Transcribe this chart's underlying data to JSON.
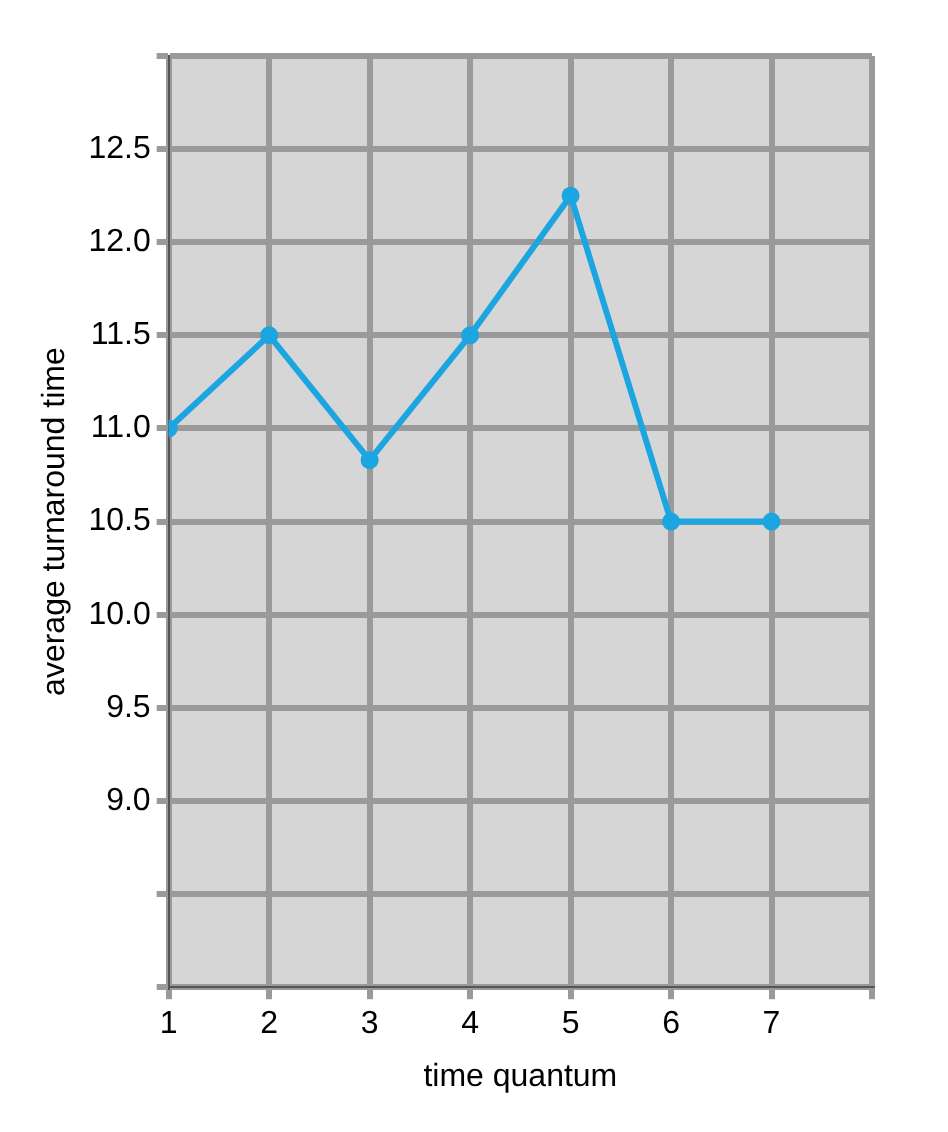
{
  "chart_data": {
    "type": "line",
    "xlabel": "time quantum",
    "ylabel": "average turnaround time",
    "x": [
      1,
      2,
      3,
      4,
      5,
      6,
      7
    ],
    "series": [
      {
        "color": "#1ba5e1",
        "values": [
          11.0,
          11.5,
          10.83,
          11.5,
          12.25,
          10.5,
          10.5
        ]
      }
    ],
    "xlim": [
      1,
      8
    ],
    "xticks": [
      1,
      2,
      3,
      4,
      5,
      6,
      7,
      {
        "value": 8,
        "label": null
      }
    ],
    "ylim": [
      8,
      13
    ],
    "yticks": [
      {
        "value": 8,
        "label": null
      },
      {
        "value": 8.5,
        "label": null
      },
      {
        "value": 9,
        "label": "9.0"
      },
      {
        "value": 9.5,
        "label": "9.5"
      },
      {
        "value": 10,
        "label": "10.0"
      },
      {
        "value": 10.5,
        "label": "10.5"
      },
      {
        "value": 11,
        "label": "11.0"
      },
      {
        "value": 11.5,
        "label": "11.5"
      },
      {
        "value": 12,
        "label": "12.0"
      },
      {
        "value": 12.5,
        "label": "12.5"
      },
      {
        "value": 13,
        "label": null
      }
    ],
    "grid": true,
    "legend": false,
    "marker": "circle",
    "line_style": "solid"
  }
}
